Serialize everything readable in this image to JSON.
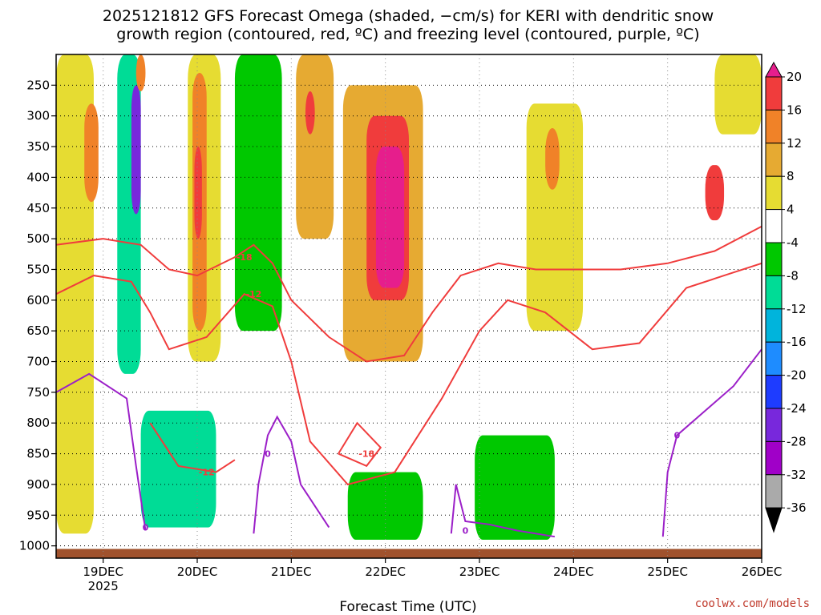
{
  "chart_data": {
    "type": "heatmap",
    "title_lines": [
      "2025121812 GFS Forecast Omega (shaded, −cm/s) for KERI with dendritic snow",
      "growth region (contoured, red, ºC) and freezing level (contoured, purple, ºC)"
    ],
    "xlabel": "Forecast Time (UTC)",
    "x_ticks": [
      {
        "t": 0.5,
        "label": "19DEC"
      },
      {
        "t": 1.5,
        "label": "20DEC"
      },
      {
        "t": 2.5,
        "label": "21DEC"
      },
      {
        "t": 3.5,
        "label": "22DEC"
      },
      {
        "t": 4.5,
        "label": "23DEC"
      },
      {
        "t": 5.5,
        "label": "24DEC"
      },
      {
        "t": 6.5,
        "label": "25DEC"
      },
      {
        "t": 7.5,
        "label": "26DEC"
      }
    ],
    "year_label": "2025",
    "xlim": [
      0,
      7.5
    ],
    "y_ticks": [
      250,
      300,
      350,
      400,
      450,
      500,
      550,
      600,
      650,
      700,
      750,
      800,
      850,
      900,
      950,
      1000
    ],
    "ylim": [
      200,
      1020
    ],
    "colorbar": {
      "levels": [
        20,
        16,
        12,
        8,
        4,
        -4,
        -8,
        -12,
        -16,
        -20,
        -24,
        -28,
        -32,
        -36
      ],
      "colors": [
        "#e61e8c",
        "#f03c3c",
        "#f08228",
        "#e6aa32",
        "#e6dc32",
        "#ffffff",
        "#00c800",
        "#00dc96",
        "#00b4dc",
        "#1e8cff",
        "#1e3cff",
        "#7828dc",
        "#a000c8",
        "#aaaaaa",
        "#000000"
      ]
    },
    "omega_regions": [
      {
        "t0": 0.0,
        "t1": 0.4,
        "p0": 200,
        "p1": 980,
        "v": 6
      },
      {
        "t0": 0.3,
        "t1": 0.45,
        "p0": 280,
        "p1": 440,
        "v": 13
      },
      {
        "t0": 0.65,
        "t1": 0.9,
        "p0": 200,
        "p1": 720,
        "v": -9
      },
      {
        "t0": 0.8,
        "t1": 0.9,
        "p0": 250,
        "p1": 460,
        "v": -28
      },
      {
        "t0": 0.85,
        "t1": 0.95,
        "p0": 200,
        "p1": 260,
        "v": 13
      },
      {
        "t0": 1.4,
        "t1": 1.75,
        "p0": 200,
        "p1": 700,
        "v": 6
      },
      {
        "t0": 1.45,
        "t1": 1.6,
        "p0": 230,
        "p1": 650,
        "v": 12
      },
      {
        "t0": 1.47,
        "t1": 1.55,
        "p0": 350,
        "p1": 500,
        "v": 17
      },
      {
        "t0": 0.9,
        "t1": 1.7,
        "p0": 780,
        "p1": 970,
        "v": -10
      },
      {
        "t0": 1.9,
        "t1": 2.4,
        "p0": 200,
        "p1": 650,
        "v": -7
      },
      {
        "t0": 2.55,
        "t1": 2.95,
        "p0": 200,
        "p1": 500,
        "v": 11
      },
      {
        "t0": 2.65,
        "t1": 2.75,
        "p0": 260,
        "p1": 330,
        "v": 19
      },
      {
        "t0": 3.05,
        "t1": 3.9,
        "p0": 250,
        "p1": 700,
        "v": 10
      },
      {
        "t0": 3.3,
        "t1": 3.75,
        "p0": 300,
        "p1": 600,
        "v": 16
      },
      {
        "t0": 3.4,
        "t1": 3.7,
        "p0": 350,
        "p1": 580,
        "v": 21
      },
      {
        "t0": 3.1,
        "t1": 3.9,
        "p0": 880,
        "p1": 990,
        "v": -7
      },
      {
        "t0": 4.45,
        "t1": 5.3,
        "p0": 820,
        "p1": 990,
        "v": -7
      },
      {
        "t0": 5.0,
        "t1": 5.6,
        "p0": 280,
        "p1": 650,
        "v": 7
      },
      {
        "t0": 5.2,
        "t1": 5.35,
        "p0": 320,
        "p1": 420,
        "v": 14
      },
      {
        "t0": 6.9,
        "t1": 7.1,
        "p0": 380,
        "p1": 470,
        "v": 18
      },
      {
        "t0": 7.0,
        "t1": 7.5,
        "p0": 200,
        "p1": 330,
        "v": 6
      }
    ],
    "contours_red": [
      {
        "label": "-18",
        "label_pos": [
          2.0,
          530
        ],
        "points": [
          [
            0,
            510
          ],
          [
            0.5,
            500
          ],
          [
            0.9,
            510
          ],
          [
            1.2,
            550
          ],
          [
            1.5,
            560
          ],
          [
            1.9,
            530
          ],
          [
            2.1,
            510
          ],
          [
            2.3,
            540
          ],
          [
            2.5,
            600
          ],
          [
            2.9,
            660
          ],
          [
            3.3,
            700
          ],
          [
            3.7,
            690
          ],
          [
            4.0,
            620
          ],
          [
            4.3,
            560
          ],
          [
            4.7,
            540
          ],
          [
            5.1,
            550
          ],
          [
            5.6,
            550
          ],
          [
            6.0,
            550
          ],
          [
            6.5,
            540
          ],
          [
            7.0,
            520
          ],
          [
            7.5,
            480
          ]
        ]
      },
      {
        "label": "-12",
        "label_pos": [
          2.1,
          590
        ],
        "points": [
          [
            0,
            590
          ],
          [
            0.4,
            560
          ],
          [
            0.8,
            570
          ],
          [
            1.0,
            620
          ],
          [
            1.2,
            680
          ],
          [
            1.6,
            660
          ],
          [
            2.0,
            590
          ],
          [
            2.3,
            610
          ],
          [
            2.5,
            700
          ],
          [
            2.7,
            830
          ],
          [
            3.1,
            900
          ],
          [
            3.6,
            880
          ],
          [
            4.1,
            760
          ],
          [
            4.5,
            650
          ],
          [
            4.8,
            600
          ],
          [
            5.2,
            620
          ],
          [
            5.7,
            680
          ],
          [
            6.2,
            670
          ],
          [
            6.7,
            580
          ],
          [
            7.1,
            560
          ],
          [
            7.5,
            540
          ]
        ]
      },
      {
        "label": "-18",
        "label_pos": [
          3.3,
          850
        ],
        "points": [
          [
            3.0,
            850
          ],
          [
            3.2,
            800
          ],
          [
            3.45,
            840
          ],
          [
            3.3,
            870
          ],
          [
            3.0,
            850
          ]
        ]
      },
      {
        "label": "-12",
        "label_pos": [
          1.6,
          880
        ],
        "points": [
          [
            1.0,
            800
          ],
          [
            1.3,
            870
          ],
          [
            1.7,
            880
          ],
          [
            1.9,
            860
          ]
        ]
      }
    ],
    "contours_purple": [
      {
        "label": "0",
        "label_pos": [
          0.95,
          970
        ],
        "points": [
          [
            0,
            750
          ],
          [
            0.35,
            720
          ],
          [
            0.75,
            760
          ],
          [
            0.85,
            870
          ],
          [
            0.95,
            975
          ]
        ]
      },
      {
        "label": "0",
        "label_pos": [
          2.25,
          850
        ],
        "points": [
          [
            2.1,
            980
          ],
          [
            2.15,
            900
          ],
          [
            2.25,
            820
          ],
          [
            2.35,
            790
          ],
          [
            2.5,
            830
          ],
          [
            2.6,
            900
          ],
          [
            2.9,
            970
          ]
        ]
      },
      {
        "label": "0",
        "label_pos": [
          4.35,
          975
        ],
        "points": [
          [
            4.2,
            980
          ],
          [
            4.25,
            900
          ],
          [
            4.35,
            960
          ],
          [
            4.6,
            965
          ],
          [
            4.9,
            975
          ],
          [
            5.3,
            985
          ]
        ]
      },
      {
        "label": "0",
        "label_pos": [
          6.6,
          820
        ],
        "points": [
          [
            6.45,
            985
          ],
          [
            6.5,
            880
          ],
          [
            6.6,
            820
          ],
          [
            6.9,
            780
          ],
          [
            7.2,
            740
          ],
          [
            7.5,
            680
          ]
        ]
      }
    ]
  },
  "credit": "coolwx.com/models"
}
